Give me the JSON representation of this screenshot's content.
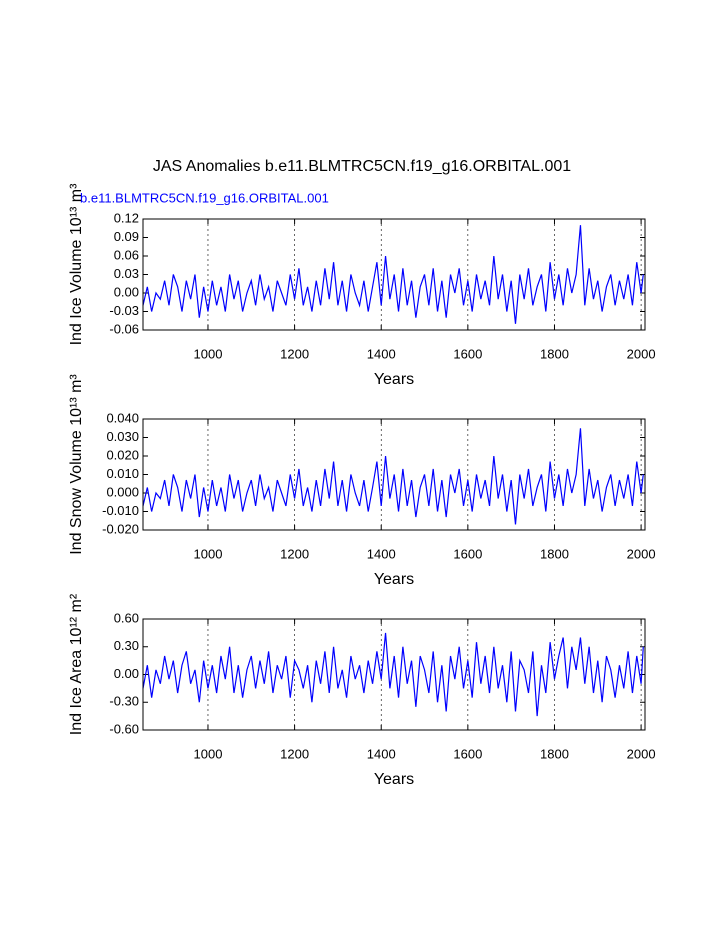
{
  "chart_data": [
    {
      "type": "line",
      "title": "JAS Anomalies b.e11.BLMTRC5CN.f19_g16.ORBITAL.001",
      "subtitle": "b.e11.BLMTRC5CN.f19_g16.ORBITAL.001",
      "subtitle_color": "#0000ff",
      "ylabel": "Ind Ice Volume 10¹³ m³",
      "xlabel": "Years",
      "color": "#0000ff",
      "grid": true,
      "xlim": [
        850,
        2009
      ],
      "xticks": [
        1000,
        1200,
        1400,
        1600,
        1800,
        2000
      ],
      "ylim": [
        -0.06,
        0.12
      ],
      "yticks": [
        {
          "value": -0.06,
          "label": "-0.06"
        },
        {
          "value": -0.03,
          "label": "-0.03"
        },
        {
          "value": 0,
          "label": "0.00"
        },
        {
          "value": 0.03,
          "label": "0.03"
        },
        {
          "value": 0.06,
          "label": "0.06"
        },
        {
          "value": 0.09,
          "label": "0.09"
        },
        {
          "value": 0.12,
          "label": "0.12"
        }
      ],
      "x": [
        850,
        860,
        870,
        880,
        890,
        900,
        910,
        920,
        930,
        940,
        950,
        960,
        970,
        980,
        990,
        1000,
        1010,
        1020,
        1030,
        1040,
        1050,
        1060,
        1070,
        1080,
        1090,
        1100,
        1110,
        1120,
        1130,
        1140,
        1150,
        1160,
        1170,
        1180,
        1190,
        1200,
        1210,
        1220,
        1230,
        1240,
        1250,
        1260,
        1270,
        1280,
        1290,
        1300,
        1310,
        1320,
        1330,
        1340,
        1350,
        1360,
        1370,
        1380,
        1390,
        1400,
        1410,
        1420,
        1430,
        1440,
        1450,
        1460,
        1470,
        1480,
        1490,
        1500,
        1510,
        1520,
        1530,
        1540,
        1550,
        1560,
        1570,
        1580,
        1590,
        1600,
        1610,
        1620,
        1630,
        1640,
        1650,
        1660,
        1670,
        1680,
        1690,
        1700,
        1710,
        1720,
        1730,
        1740,
        1750,
        1760,
        1770,
        1780,
        1790,
        1800,
        1810,
        1820,
        1830,
        1840,
        1850,
        1860,
        1870,
        1880,
        1890,
        1900,
        1910,
        1920,
        1930,
        1940,
        1950,
        1960,
        1970,
        1980,
        1990,
        2000,
        2005
      ],
      "values": [
        -0.02,
        0.01,
        -0.03,
        0.0,
        -0.01,
        0.02,
        -0.02,
        0.03,
        0.01,
        -0.03,
        0.02,
        -0.01,
        0.03,
        -0.04,
        0.01,
        -0.03,
        0.02,
        -0.02,
        0.01,
        -0.03,
        0.03,
        -0.01,
        0.02,
        -0.03,
        0.0,
        0.02,
        -0.02,
        0.03,
        -0.01,
        0.01,
        -0.03,
        0.02,
        0.0,
        -0.02,
        0.03,
        -0.01,
        0.04,
        -0.02,
        0.01,
        -0.03,
        0.02,
        -0.02,
        0.04,
        -0.01,
        0.05,
        -0.02,
        0.02,
        -0.03,
        0.03,
        0.0,
        -0.02,
        0.02,
        -0.03,
        0.01,
        0.05,
        -0.02,
        0.06,
        -0.01,
        0.03,
        -0.03,
        0.04,
        -0.02,
        0.02,
        -0.04,
        0.01,
        0.03,
        -0.02,
        0.04,
        -0.03,
        0.02,
        -0.04,
        0.03,
        0.0,
        0.04,
        -0.02,
        0.02,
        -0.03,
        0.03,
        -0.01,
        0.02,
        -0.02,
        0.06,
        -0.01,
        0.03,
        -0.03,
        0.02,
        -0.05,
        0.03,
        -0.01,
        0.04,
        -0.02,
        0.01,
        0.03,
        -0.03,
        0.05,
        -0.01,
        0.03,
        -0.02,
        0.04,
        0.0,
        0.03,
        0.11,
        -0.02,
        0.04,
        -0.01,
        0.02,
        -0.03,
        0.01,
        0.03,
        -0.02,
        0.02,
        -0.01,
        0.03,
        -0.02,
        0.05,
        0.0,
        0.03
      ]
    },
    {
      "type": "line",
      "ylabel": "Ind Snow Volume 10¹³ m³",
      "xlabel": "Years",
      "color": "#0000ff",
      "grid": true,
      "xlim": [
        850,
        2009
      ],
      "xticks": [
        1000,
        1200,
        1400,
        1600,
        1800,
        2000
      ],
      "ylim": [
        -0.02,
        0.04
      ],
      "yticks": [
        {
          "value": -0.02,
          "label": "-0.020"
        },
        {
          "value": -0.01,
          "label": "-0.010"
        },
        {
          "value": 0,
          "label": "0.000"
        },
        {
          "value": 0.01,
          "label": "0.010"
        },
        {
          "value": 0.02,
          "label": "0.020"
        },
        {
          "value": 0.03,
          "label": "0.030"
        },
        {
          "value": 0.04,
          "label": "0.040"
        }
      ],
      "x": [
        850,
        860,
        870,
        880,
        890,
        900,
        910,
        920,
        930,
        940,
        950,
        960,
        970,
        980,
        990,
        1000,
        1010,
        1020,
        1030,
        1040,
        1050,
        1060,
        1070,
        1080,
        1090,
        1100,
        1110,
        1120,
        1130,
        1140,
        1150,
        1160,
        1170,
        1180,
        1190,
        1200,
        1210,
        1220,
        1230,
        1240,
        1250,
        1260,
        1270,
        1280,
        1290,
        1300,
        1310,
        1320,
        1330,
        1340,
        1350,
        1360,
        1370,
        1380,
        1390,
        1400,
        1410,
        1420,
        1430,
        1440,
        1450,
        1460,
        1470,
        1480,
        1490,
        1500,
        1510,
        1520,
        1530,
        1540,
        1550,
        1560,
        1570,
        1580,
        1590,
        1600,
        1610,
        1620,
        1630,
        1640,
        1650,
        1660,
        1670,
        1680,
        1690,
        1700,
        1710,
        1720,
        1730,
        1740,
        1750,
        1760,
        1770,
        1780,
        1790,
        1800,
        1810,
        1820,
        1830,
        1840,
        1850,
        1860,
        1870,
        1880,
        1890,
        1900,
        1910,
        1920,
        1930,
        1940,
        1950,
        1960,
        1970,
        1980,
        1990,
        2000,
        2005
      ],
      "values": [
        -0.007,
        0.003,
        -0.01,
        0,
        -0.003,
        0.007,
        -0.007,
        0.01,
        0.003,
        -0.01,
        0.007,
        -0.003,
        0.01,
        -0.013,
        0.003,
        -0.01,
        0.007,
        -0.007,
        0.003,
        -0.01,
        0.01,
        -0.003,
        0.007,
        -0.01,
        0,
        0.007,
        -0.007,
        0.01,
        -0.003,
        0.003,
        -0.01,
        0.007,
        0,
        -0.007,
        0.01,
        -0.003,
        0.013,
        -0.007,
        0.003,
        -0.01,
        0.007,
        -0.007,
        0.013,
        -0.003,
        0.017,
        -0.007,
        0.007,
        -0.01,
        0.01,
        0,
        -0.007,
        0.007,
        -0.01,
        0.003,
        0.017,
        -0.007,
        0.02,
        -0.003,
        0.01,
        -0.01,
        0.013,
        -0.007,
        0.007,
        -0.013,
        0.003,
        0.01,
        -0.007,
        0.013,
        -0.01,
        0.007,
        -0.013,
        0.01,
        0,
        0.013,
        -0.007,
        0.007,
        -0.01,
        0.01,
        -0.003,
        0.007,
        -0.007,
        0.02,
        -0.003,
        0.01,
        -0.01,
        0.007,
        -0.017,
        0.01,
        -0.003,
        0.013,
        -0.007,
        0.003,
        0.01,
        -0.01,
        0.017,
        -0.003,
        0.01,
        -0.007,
        0.013,
        0,
        0.01,
        0.035,
        -0.007,
        0.013,
        -0.003,
        0.007,
        -0.01,
        0.003,
        0.01,
        -0.007,
        0.007,
        -0.003,
        0.01,
        -0.007,
        0.017,
        0,
        0.01
      ]
    },
    {
      "type": "line",
      "ylabel": "Ind Ice Area 10¹² m²",
      "xlabel": "Years",
      "color": "#0000ff",
      "grid": true,
      "xlim": [
        850,
        2009
      ],
      "xticks": [
        1000,
        1200,
        1400,
        1600,
        1800,
        2000
      ],
      "ylim": [
        -0.6,
        0.6
      ],
      "yticks": [
        {
          "value": -0.6,
          "label": "-0.60"
        },
        {
          "value": -0.3,
          "label": "-0.30"
        },
        {
          "value": 0,
          "label": "0.00"
        },
        {
          "value": 0.3,
          "label": "0.30"
        },
        {
          "value": 0.6,
          "label": "0.60"
        }
      ],
      "x": [
        850,
        860,
        870,
        880,
        890,
        900,
        910,
        920,
        930,
        940,
        950,
        960,
        970,
        980,
        990,
        1000,
        1010,
        1020,
        1030,
        1040,
        1050,
        1060,
        1070,
        1080,
        1090,
        1100,
        1110,
        1120,
        1130,
        1140,
        1150,
        1160,
        1170,
        1180,
        1190,
        1200,
        1210,
        1220,
        1230,
        1240,
        1250,
        1260,
        1270,
        1280,
        1290,
        1300,
        1310,
        1320,
        1330,
        1340,
        1350,
        1360,
        1370,
        1380,
        1390,
        1400,
        1410,
        1420,
        1430,
        1440,
        1450,
        1460,
        1470,
        1480,
        1490,
        1500,
        1510,
        1520,
        1530,
        1540,
        1550,
        1560,
        1570,
        1580,
        1590,
        1600,
        1610,
        1620,
        1630,
        1640,
        1650,
        1660,
        1670,
        1680,
        1690,
        1700,
        1710,
        1720,
        1730,
        1740,
        1750,
        1760,
        1770,
        1780,
        1790,
        1800,
        1810,
        1820,
        1830,
        1840,
        1850,
        1860,
        1870,
        1880,
        1890,
        1900,
        1910,
        1920,
        1930,
        1940,
        1950,
        1960,
        1970,
        1980,
        1990,
        2000,
        2005
      ],
      "values": [
        -0.15,
        0.1,
        -0.25,
        0.05,
        -0.1,
        0.2,
        -0.05,
        0.15,
        -0.2,
        0.1,
        0.25,
        -0.1,
        0.05,
        -0.3,
        0.15,
        -0.15,
        0.1,
        -0.2,
        0.2,
        -0.05,
        0.3,
        -0.2,
        0.1,
        -0.25,
        0.05,
        0.2,
        -0.15,
        0.15,
        -0.1,
        0.25,
        -0.2,
        0.1,
        -0.05,
        0.2,
        -0.25,
        0.15,
        0.05,
        -0.15,
        0.1,
        -0.3,
        0.15,
        -0.1,
        0.25,
        -0.2,
        0.3,
        -0.15,
        0.05,
        -0.25,
        0.2,
        -0.05,
        0.1,
        -0.2,
        0.15,
        -0.1,
        0.25,
        -0.05,
        0.45,
        -0.15,
        0.2,
        -0.25,
        0.3,
        -0.1,
        0.15,
        -0.35,
        0.2,
        0.05,
        -0.2,
        0.25,
        -0.3,
        0.1,
        -0.4,
        0.2,
        -0.05,
        0.3,
        -0.15,
        0.15,
        -0.25,
        0.35,
        -0.1,
        0.2,
        -0.2,
        0.3,
        -0.15,
        0.1,
        -0.3,
        0.25,
        -0.4,
        0.15,
        0.05,
        -0.2,
        0.25,
        -0.45,
        0.1,
        -0.2,
        0.35,
        -0.05,
        0.2,
        0.4,
        -0.15,
        0.3,
        0.05,
        0.4,
        -0.1,
        0.3,
        -0.2,
        0.15,
        -0.3,
        0.2,
        0.05,
        -0.25,
        0.1,
        -0.15,
        0.25,
        -0.2,
        0.2,
        -0.1,
        0.3
      ]
    }
  ]
}
